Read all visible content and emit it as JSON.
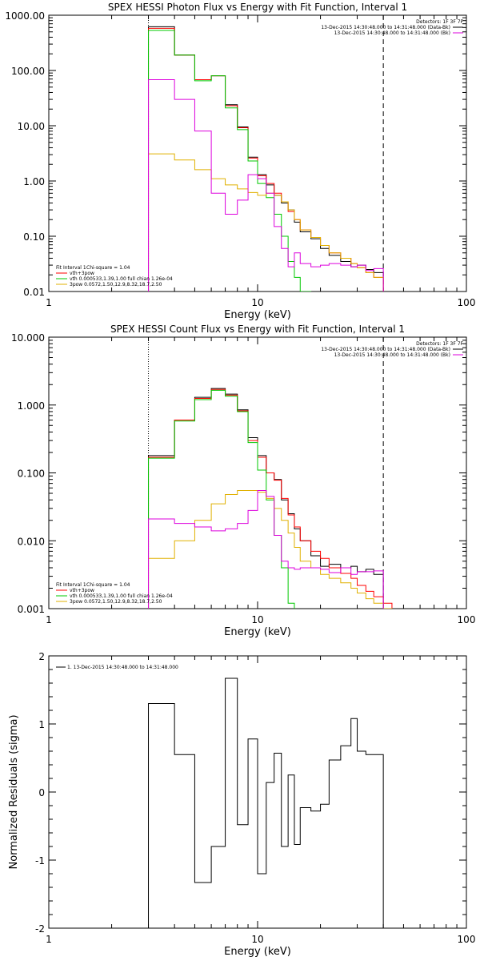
{
  "chart_data": [
    {
      "type": "line",
      "title": "SPEX HESSI Photon Flux vs Energy with Fit Function, Interval 1",
      "xlabel": "Energy (keV)",
      "ylabel": "",
      "xscale": "log",
      "yscale": "log",
      "xlim": [
        1,
        100
      ],
      "ylim": [
        0.01,
        1000
      ],
      "xticks": [
        {
          "value": 1,
          "label": "1"
        },
        {
          "value": 10,
          "label": "10"
        },
        {
          "value": 100,
          "label": "100"
        }
      ],
      "yticks": [
        {
          "value": 0.01,
          "label": "0.01"
        },
        {
          "value": 0.1,
          "label": "0.10"
        },
        {
          "value": 1,
          "label": "1.00"
        },
        {
          "value": 10,
          "label": "10.00"
        },
        {
          "value": 100,
          "label": "100.00"
        },
        {
          "value": 1000,
          "label": "1000.00"
        }
      ],
      "vlines": [
        {
          "x": 3.0,
          "style": "dotted",
          "color": "#000000"
        },
        {
          "x": 40.0,
          "style": "dashed",
          "color": "#000000"
        }
      ],
      "edges": [
        3.0,
        4.0,
        5.0,
        6.0,
        7.0,
        8.0,
        9.0,
        10.0,
        11.0,
        12.0,
        13.0,
        14.0,
        15.0,
        16.0,
        18.0,
        20.0,
        22.0,
        25.0,
        28.0,
        30.0,
        33.0,
        36.0,
        40.0
      ],
      "series": [
        {
          "name": "Data",
          "color": "#000000",
          "values": [
            620,
            190,
            68,
            80,
            24,
            9.5,
            2.7,
            1.3,
            0.85,
            0.55,
            0.4,
            0.3,
            0.18,
            0.12,
            0.09,
            0.06,
            0.045,
            0.035,
            0.028,
            0.03,
            0.025,
            0.022
          ]
        },
        {
          "name": "vth+3pow",
          "color": "#ff0000",
          "values": [
            580,
            190,
            68,
            80,
            23,
            9.2,
            2.6,
            1.25,
            0.9,
            0.6,
            0.42,
            0.28,
            0.2,
            0.13,
            0.095,
            0.068,
            0.05,
            0.04,
            0.032,
            0.027,
            0.022,
            0.018
          ]
        },
        {
          "name": "vth",
          "color": "#00c800",
          "values": [
            530,
            190,
            65,
            80,
            21,
            8.5,
            2.3,
            0.9,
            0.5,
            0.25,
            0.1,
            0.035,
            0.018,
            0.01
          ]
        },
        {
          "name": "3pow",
          "color": "#e0b000",
          "values": [
            3.1,
            2.4,
            1.6,
            1.1,
            0.85,
            0.72,
            0.62,
            0.55,
            0.6,
            0.55,
            0.42,
            0.3,
            0.2,
            0.13,
            0.095,
            0.068,
            0.05,
            0.04,
            0.032,
            0.027,
            0.022,
            0.018
          ]
        },
        {
          "name": "",
          "color": "#dd00dd",
          "values": [
            68,
            30,
            8,
            0.6,
            0.25,
            0.45,
            1.3,
            1.1,
            0.6,
            0.15,
            0.06,
            0.028,
            0.05,
            0.032,
            0.028,
            0.03,
            0.032,
            0.03,
            0.028,
            0.03,
            0.024,
            0.026
          ]
        }
      ],
      "stats": {
        "interval": "Fit Interval  1",
        "chi_square": "Chi-square = 1.04"
      },
      "legend": {
        "entries": [
          {
            "label": "vth+3pow",
            "color": "#ff0000"
          },
          {
            "label": "vth 0.000533,1.39,1.00  full chian 1.26e-04",
            "color": "#00c800"
          },
          {
            "label": "3pow 0.0572,1.50,12.9,8.32,18.7,2.50",
            "color": "#e0b000"
          }
        ]
      },
      "info": {
        "detectors": "Detectors: 1F 3F 7F",
        "lines": [
          {
            "text": "13-Dec-2015 14:30:48.000 to 14:31:48.000 (Data-Bk)",
            "color": "#000000"
          },
          {
            "text": "13-Dec-2015 14:30:48.000 to 14:31:48.000 (Bk)",
            "color": "#dd00dd"
          }
        ]
      }
    },
    {
      "type": "line",
      "title": "SPEX HESSI Count Flux vs Energy with Fit Function, Interval 1",
      "xlabel": "Energy (keV)",
      "ylabel": "",
      "xscale": "log",
      "yscale": "log",
      "xlim": [
        1,
        100
      ],
      "ylim": [
        0.001,
        10
      ],
      "xticks": [
        {
          "value": 1,
          "label": "1"
        },
        {
          "value": 10,
          "label": "10"
        },
        {
          "value": 100,
          "label": "100"
        }
      ],
      "yticks": [
        {
          "value": 0.001,
          "label": "0.001"
        },
        {
          "value": 0.01,
          "label": "0.010"
        },
        {
          "value": 0.1,
          "label": "0.100"
        },
        {
          "value": 1,
          "label": "1.000"
        },
        {
          "value": 10,
          "label": "10.000"
        }
      ],
      "vlines": [
        {
          "x": 3.0,
          "style": "dotted",
          "color": "#000000"
        },
        {
          "x": 40.0,
          "style": "dashed",
          "color": "#000000"
        }
      ],
      "edges": [
        3.0,
        4.0,
        5.0,
        6.0,
        7.0,
        8.0,
        9.0,
        10.0,
        11.0,
        12.0,
        13.0,
        14.0,
        15.0,
        16.0,
        18.0,
        20.0,
        22.0,
        25.0,
        28.0,
        30.0,
        33.0,
        36.0,
        40.0,
        44.0,
        48.0
      ],
      "series": [
        {
          "name": "Data",
          "color": "#000000",
          "values": [
            0.18,
            0.6,
            1.3,
            1.75,
            1.45,
            0.85,
            0.33,
            0.18,
            0.1,
            0.08,
            0.04,
            0.025,
            0.015,
            0.01,
            0.006,
            0.0042,
            0.0045,
            0.004,
            0.0042,
            0.0035,
            0.0038,
            0.0032
          ]
        },
        {
          "name": "vth+3pow",
          "color": "#ff0000",
          "values": [
            0.17,
            0.6,
            1.25,
            1.7,
            1.4,
            0.82,
            0.3,
            0.17,
            0.1,
            0.078,
            0.042,
            0.024,
            0.016,
            0.01,
            0.007,
            0.0055,
            0.004,
            0.0033,
            0.0028,
            0.0022,
            0.0018,
            0.0015,
            0.0012
          ]
        },
        {
          "name": "vth",
          "color": "#00c800",
          "values": [
            0.165,
            0.58,
            1.2,
            1.65,
            1.35,
            0.8,
            0.28,
            0.11,
            0.04,
            0.012,
            0.004,
            0.0012,
            0.00035
          ]
        },
        {
          "name": "3pow",
          "color": "#e0b000",
          "values": [
            0.0055,
            0.01,
            0.02,
            0.035,
            0.048,
            0.055,
            0.055,
            0.052,
            0.042,
            0.03,
            0.02,
            0.013,
            0.008,
            0.005,
            0.004,
            0.0032,
            0.0028,
            0.0024,
            0.002,
            0.0017,
            0.0014,
            0.0012,
            0.001,
            0.0008
          ]
        },
        {
          "name": "",
          "color": "#dd00dd",
          "values": [
            0.021,
            0.018,
            0.016,
            0.014,
            0.015,
            0.018,
            0.028,
            0.055,
            0.045,
            0.012,
            0.005,
            0.004,
            0.0038,
            0.004,
            0.004,
            0.0038,
            0.0034,
            0.004,
            0.0032,
            0.0035,
            0.0035,
            0.0036
          ]
        }
      ],
      "stats": {
        "interval": "Fit Interval  1",
        "chi_square": "Chi-square = 1.04"
      },
      "legend": {
        "entries": [
          {
            "label": "vth+3pow",
            "color": "#ff0000"
          },
          {
            "label": "vth 0.000533,1.39,1.00  full chian 1.26e-04",
            "color": "#00c800"
          },
          {
            "label": "3pow 0.0572,1.50,12.9,8.32,18.7,2.50",
            "color": "#e0b000"
          }
        ]
      },
      "info": {
        "detectors": "Detectors: 1F 3F 7F",
        "lines": [
          {
            "text": "13-Dec-2015 14:30:48.000 to 14:31:48.000 (Data-Bk)",
            "color": "#000000"
          },
          {
            "text": "13-Dec-2015 14:30:48.000 to 14:31:48.000 (Bk)",
            "color": "#dd00dd"
          }
        ]
      }
    },
    {
      "type": "line",
      "title": "",
      "xlabel": "Energy (keV)",
      "ylabel": "Normalized Residuals (sigma)",
      "xscale": "log",
      "yscale": "linear",
      "xlim": [
        1,
        100
      ],
      "ylim": [
        -2,
        2
      ],
      "xticks": [
        {
          "value": 1,
          "label": "1"
        },
        {
          "value": 10,
          "label": "10"
        },
        {
          "value": 100,
          "label": "100"
        }
      ],
      "yticks": [
        {
          "value": -2,
          "label": "-2"
        },
        {
          "value": -1,
          "label": "-1"
        },
        {
          "value": 0,
          "label": "0"
        },
        {
          "value": 1,
          "label": "1"
        },
        {
          "value": 2,
          "label": "2"
        }
      ],
      "vlines": [],
      "edges": [
        3.0,
        4.0,
        5.0,
        6.0,
        7.0,
        8.0,
        9.0,
        10.0,
        11.0,
        12.0,
        13.0,
        14.0,
        15.0,
        16.0,
        18.0,
        20.0,
        22.0,
        25.0,
        28.0,
        30.0,
        33.0,
        36.0,
        40.0
      ],
      "series": [
        {
          "name": "1. 13-Dec-2015 14:30:48.000 to 14:31:48.000",
          "color": "#000000",
          "drop_to": -2,
          "values": [
            1.3,
            0.55,
            -1.33,
            -0.8,
            1.67,
            -0.48,
            0.78,
            -1.2,
            0.14,
            0.57,
            -0.8,
            0.25,
            -0.77,
            -0.23,
            -0.28,
            -0.18,
            0.47,
            0.68,
            1.08,
            0.6,
            0.55,
            0.55
          ]
        }
      ],
      "legend": {
        "entries": [
          {
            "label": "1. 13-Dec-2015 14:30:48.000 to 14:31:48.000",
            "color": "#000000"
          }
        ]
      }
    }
  ]
}
